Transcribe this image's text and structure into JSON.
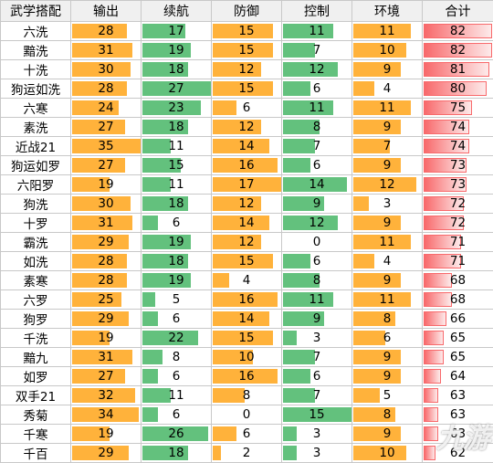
{
  "headers": [
    "武学搭配",
    "输出",
    "续航",
    "防御",
    "控制",
    "环境",
    "合计"
  ],
  "colors": {
    "orange": "#ffb23b",
    "green": "#63c17d",
    "red_start": "#f8696b",
    "red_end": "#fdeaea",
    "border": "#c8c8c8",
    "header_bg": "#f0f0f0"
  },
  "scale_max": {
    "输出": 35,
    "续航": 27,
    "防御": 17,
    "控制": 15,
    "环境": 13,
    "合计": 82
  },
  "rows": [
    {
      "name": "六洗",
      "vals": [
        28,
        17,
        15,
        11,
        11,
        82
      ]
    },
    {
      "name": "黯洗",
      "vals": [
        31,
        19,
        15,
        7,
        10,
        82
      ]
    },
    {
      "name": "十洗",
      "vals": [
        30,
        18,
        12,
        12,
        9,
        81
      ]
    },
    {
      "name": "狗运如洗",
      "vals": [
        28,
        27,
        15,
        6,
        4,
        80
      ]
    },
    {
      "name": "六寒",
      "vals": [
        24,
        23,
        6,
        11,
        11,
        75
      ]
    },
    {
      "name": "素洗",
      "vals": [
        27,
        18,
        12,
        8,
        9,
        74
      ]
    },
    {
      "name": "近战21",
      "vals": [
        35,
        11,
        14,
        7,
        7,
        74
      ]
    },
    {
      "name": "狗运如罗",
      "vals": [
        27,
        15,
        16,
        6,
        9,
        73
      ]
    },
    {
      "name": "六阳罗",
      "vals": [
        19,
        11,
        17,
        14,
        12,
        73
      ]
    },
    {
      "name": "狗洗",
      "vals": [
        30,
        18,
        12,
        9,
        3,
        72
      ]
    },
    {
      "name": "十罗",
      "vals": [
        31,
        6,
        14,
        12,
        9,
        72
      ]
    },
    {
      "name": "霸洗",
      "vals": [
        29,
        19,
        12,
        0,
        11,
        71
      ]
    },
    {
      "name": "如洗",
      "vals": [
        28,
        18,
        15,
        6,
        4,
        71
      ]
    },
    {
      "name": "素寒",
      "vals": [
        28,
        19,
        4,
        8,
        9,
        68
      ]
    },
    {
      "name": "六罗",
      "vals": [
        25,
        5,
        16,
        11,
        11,
        68
      ]
    },
    {
      "name": "狗罗",
      "vals": [
        29,
        6,
        14,
        9,
        8,
        66
      ]
    },
    {
      "name": "千洗",
      "vals": [
        19,
        22,
        15,
        3,
        6,
        65
      ]
    },
    {
      "name": "黯九",
      "vals": [
        31,
        8,
        10,
        7,
        9,
        65
      ]
    },
    {
      "name": "如罗",
      "vals": [
        27,
        6,
        16,
        6,
        9,
        64
      ]
    },
    {
      "name": "双手21",
      "vals": [
        32,
        11,
        8,
        7,
        5,
        63
      ]
    },
    {
      "name": "秀菊",
      "vals": [
        34,
        6,
        0,
        15,
        8,
        63
      ]
    },
    {
      "name": "千寒",
      "vals": [
        19,
        26,
        6,
        3,
        9,
        63
      ]
    },
    {
      "name": "千百",
      "vals": [
        29,
        18,
        2,
        3,
        10,
        62
      ]
    }
  ],
  "watermark": "九游"
}
